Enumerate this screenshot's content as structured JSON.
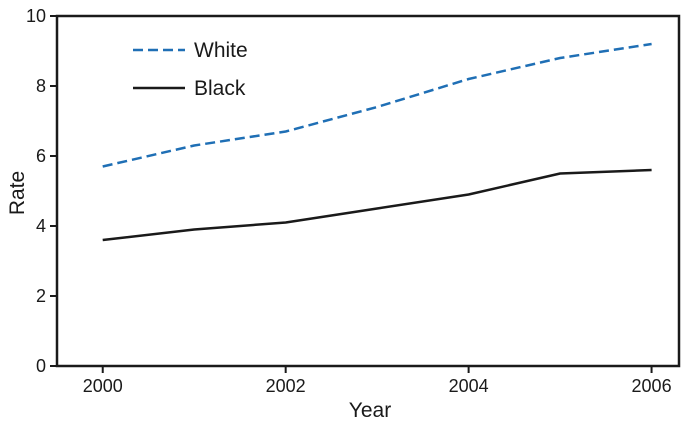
{
  "chart_data": {
    "type": "line",
    "title": "",
    "xlabel": "Year",
    "ylabel": "Rate",
    "xlim": [
      1999.5,
      2006.3
    ],
    "ylim": [
      0,
      10
    ],
    "x_ticks": [
      2000,
      2002,
      2004,
      2006
    ],
    "y_ticks": [
      0,
      2,
      4,
      6,
      8,
      10
    ],
    "x_tick_labels": [
      "2000",
      "2002",
      "2004",
      "2006"
    ],
    "y_tick_labels": [
      "0",
      "2",
      "4",
      "6",
      "8",
      "10"
    ],
    "grid": false,
    "legend_position": "top-left",
    "x": [
      2000,
      2001,
      2002,
      2003,
      2004,
      2005,
      2006
    ],
    "series": [
      {
        "name": "White",
        "values": [
          5.7,
          6.3,
          6.7,
          7.4,
          8.2,
          8.8,
          9.2
        ],
        "color": "#1f6fb5",
        "style": "dashed"
      },
      {
        "name": "Black",
        "values": [
          3.6,
          3.9,
          4.1,
          4.5,
          4.9,
          5.5,
          5.6
        ],
        "color": "#1a1a1a",
        "style": "solid"
      }
    ]
  }
}
